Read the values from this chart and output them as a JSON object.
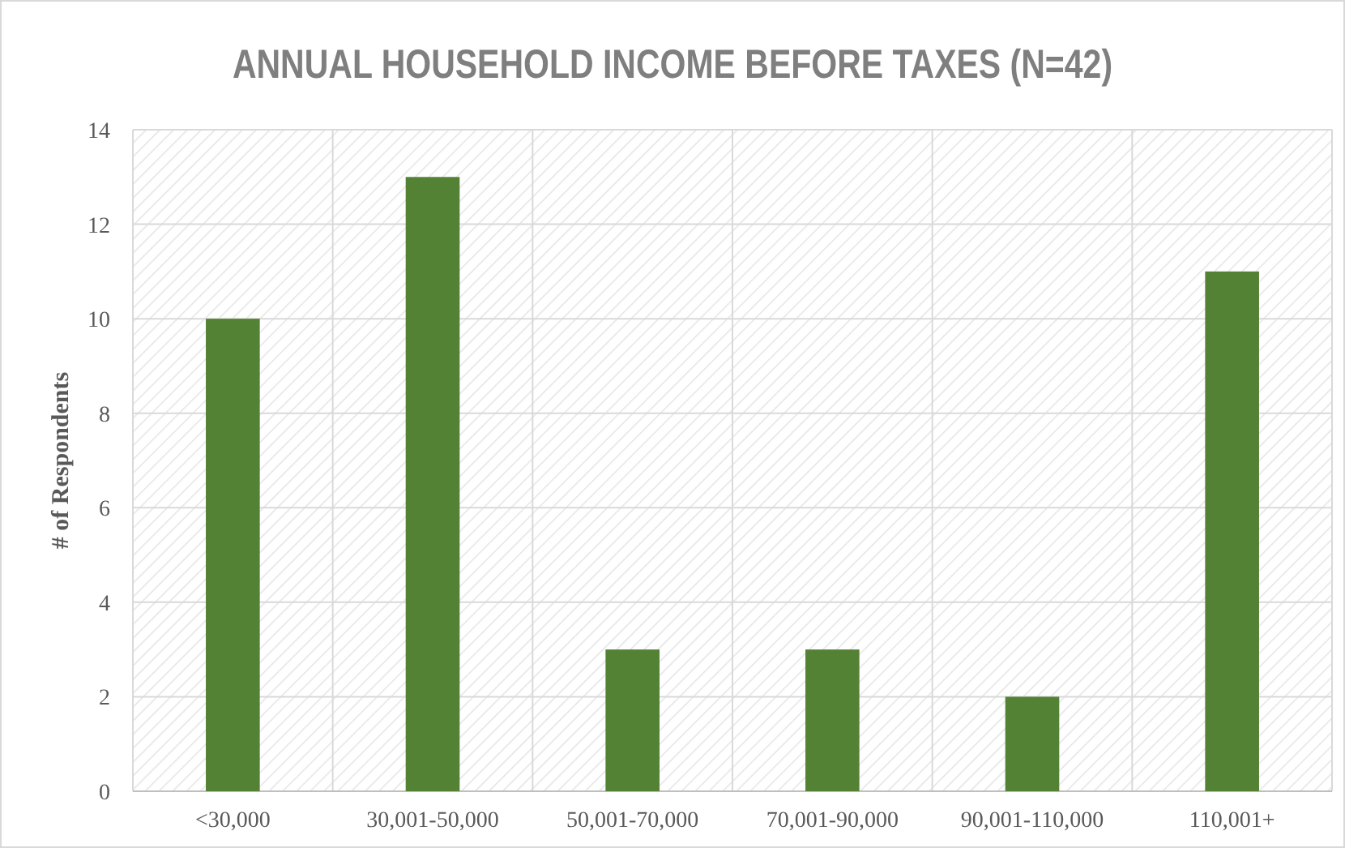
{
  "chart_data": {
    "type": "bar",
    "title": "ANNUAL HOUSEHOLD INCOME BEFORE TAXES (N=42)",
    "ylabel": "# of Respondents",
    "categories": [
      "<30,000",
      "30,001-50,000",
      "50,001-70,000",
      "70,001-90,000",
      "90,001-110,000",
      "110,001+"
    ],
    "values": [
      10,
      13,
      3,
      3,
      2,
      11
    ],
    "color": "#548235",
    "ylim": [
      0,
      14
    ],
    "yticks": [
      0,
      2,
      4,
      6,
      8,
      10,
      12,
      14
    ],
    "grid": true
  }
}
